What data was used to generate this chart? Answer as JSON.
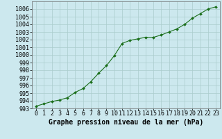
{
  "x": [
    0,
    1,
    2,
    3,
    4,
    5,
    6,
    7,
    8,
    9,
    10,
    11,
    12,
    13,
    14,
    15,
    16,
    17,
    18,
    19,
    20,
    21,
    22,
    23
  ],
  "y": [
    993.3,
    993.6,
    993.9,
    994.1,
    994.4,
    995.1,
    995.6,
    996.5,
    997.6,
    998.6,
    999.9,
    1001.5,
    1001.9,
    1002.1,
    1002.3,
    1002.3,
    1002.6,
    1003.0,
    1003.4,
    1004.0,
    1004.8,
    1005.4,
    1006.0,
    1006.3
  ],
  "bg_color": "#cce8ee",
  "grid_color": "#aacccc",
  "line_color": "#1a6e1a",
  "marker_color": "#1a6e1a",
  "xlabel": "Graphe pression niveau de la mer (hPa)",
  "xlabel_fontsize": 7,
  "tick_fontsize": 6,
  "ylim_min": 993,
  "ylim_max": 1007,
  "xlim_min": -0.5,
  "xlim_max": 23.5,
  "yticks": [
    993,
    994,
    995,
    996,
    997,
    998,
    999,
    1000,
    1001,
    1002,
    1003,
    1004,
    1005,
    1006
  ],
  "xticks": [
    0,
    1,
    2,
    3,
    4,
    5,
    6,
    7,
    8,
    9,
    10,
    11,
    12,
    13,
    14,
    15,
    16,
    17,
    18,
    19,
    20,
    21,
    22,
    23
  ]
}
